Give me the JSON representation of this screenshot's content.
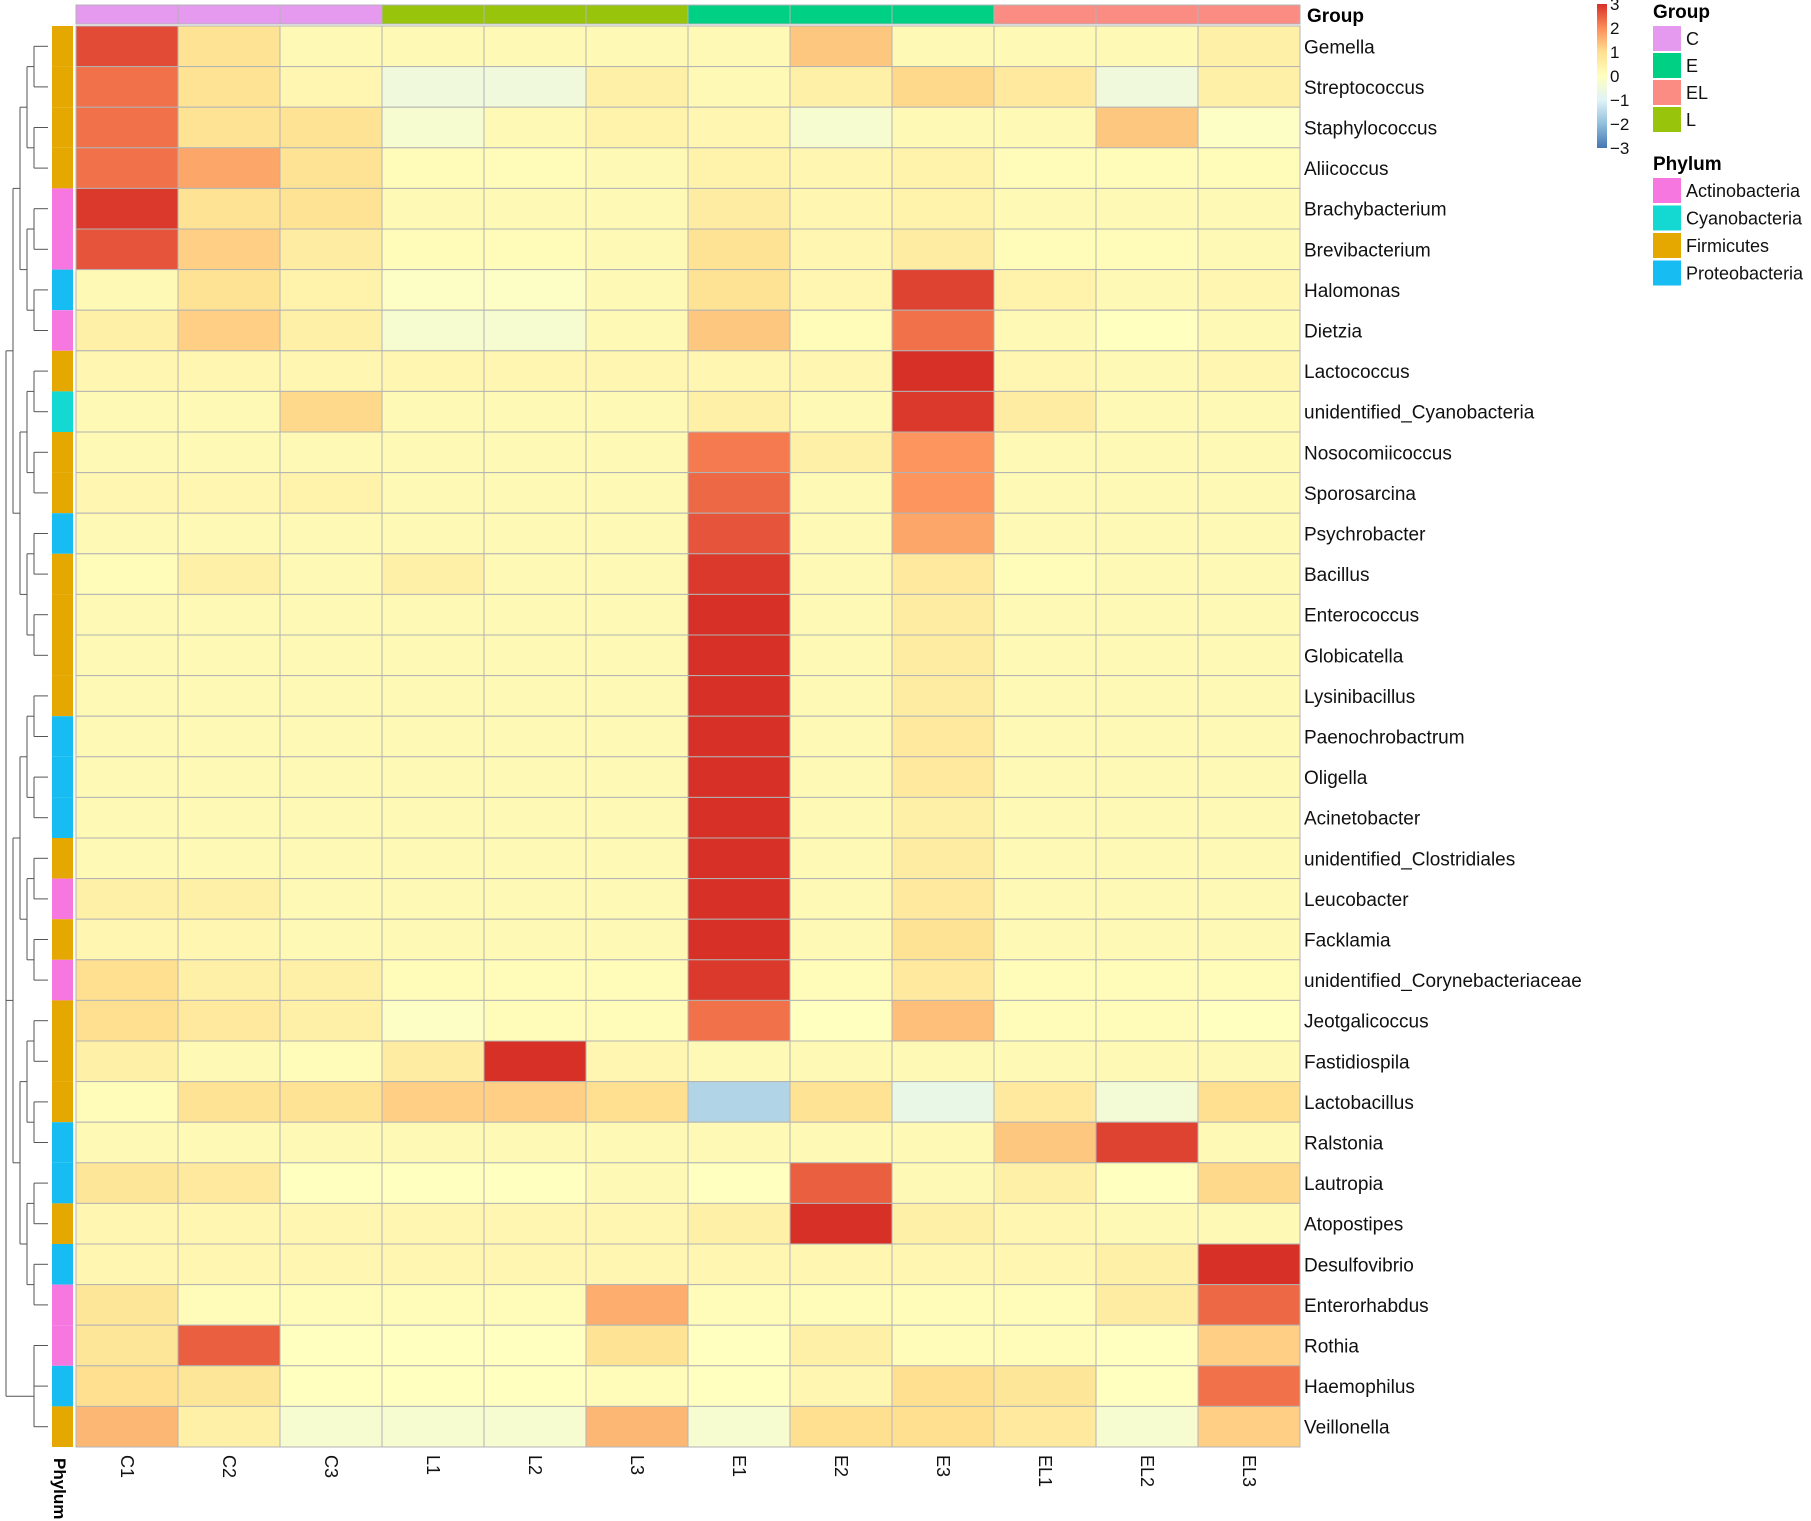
{
  "chart_data": {
    "type": "heatmap",
    "columns": [
      "C1",
      "C2",
      "C3",
      "L1",
      "L2",
      "L3",
      "E1",
      "E2",
      "E3",
      "EL1",
      "EL2",
      "EL3"
    ],
    "column_groups": [
      "C",
      "C",
      "C",
      "L",
      "L",
      "L",
      "E",
      "E",
      "E",
      "EL",
      "EL",
      "EL"
    ],
    "rows": [
      {
        "name": "Gemella",
        "phylum": "Firmicutes",
        "values": [
          2.7,
          0.9,
          0.2,
          0.2,
          0.2,
          0.2,
          0.2,
          1.3,
          0.2,
          0.2,
          0.2,
          0.5
        ]
      },
      {
        "name": "Streptococcus",
        "phylum": "Firmicutes",
        "values": [
          2.3,
          0.9,
          0.3,
          -0.5,
          -0.5,
          0.5,
          0.2,
          0.5,
          1.1,
          0.7,
          -0.5,
          0.5
        ]
      },
      {
        "name": "Staphylococcus",
        "phylum": "Firmicutes",
        "values": [
          2.3,
          0.9,
          0.9,
          -0.3,
          0.2,
          0.4,
          0.3,
          -0.3,
          0.2,
          0.2,
          1.3,
          -0.1
        ]
      },
      {
        "name": "Aliicoccus",
        "phylum": "Firmicutes",
        "values": [
          2.3,
          1.7,
          0.9,
          0.1,
          0.1,
          0.2,
          0.4,
          0.3,
          0.4,
          0.1,
          0.1,
          0.1
        ]
      },
      {
        "name": "Brachybacterium",
        "phylum": "Actinobacteria",
        "values": [
          2.9,
          0.9,
          0.9,
          0.2,
          0.2,
          0.2,
          0.6,
          0.3,
          0.4,
          0.2,
          0.2,
          0.2
        ]
      },
      {
        "name": "Brevibacterium",
        "phylum": "Actinobacteria",
        "values": [
          2.6,
          1.2,
          0.6,
          0.1,
          0.1,
          0.2,
          0.9,
          0.3,
          0.6,
          0.1,
          0.1,
          0.2
        ]
      },
      {
        "name": "Halomonas",
        "phylum": "Proteobacteria",
        "values": [
          0.2,
          0.9,
          0.4,
          -0.1,
          -0.1,
          0.2,
          0.9,
          0.3,
          2.8,
          0.4,
          0.2,
          0.3
        ]
      },
      {
        "name": "Dietzia",
        "phylum": "Actinobacteria",
        "values": [
          0.5,
          1.2,
          0.5,
          -0.3,
          -0.3,
          0.2,
          1.3,
          0.1,
          2.3,
          0.2,
          0.0,
          0.2
        ]
      },
      {
        "name": "Lactococcus",
        "phylum": "Firmicutes",
        "values": [
          0.3,
          0.3,
          0.3,
          0.3,
          0.3,
          0.3,
          0.3,
          0.3,
          3.1,
          0.3,
          0.2,
          0.3
        ]
      },
      {
        "name": "unidentified_Cyanobacteria",
        "phylum": "Cyanobacteria",
        "values": [
          0.2,
          0.2,
          1.1,
          0.2,
          0.2,
          0.2,
          0.5,
          0.2,
          2.9,
          0.6,
          0.2,
          0.2
        ]
      },
      {
        "name": "Nosocomiicoccus",
        "phylum": "Firmicutes",
        "values": [
          0.2,
          0.2,
          0.2,
          0.2,
          0.2,
          0.2,
          2.2,
          0.5,
          1.9,
          0.2,
          0.2,
          0.2
        ]
      },
      {
        "name": "Sporosarcina",
        "phylum": "Firmicutes",
        "values": [
          0.3,
          0.3,
          0.4,
          0.2,
          0.2,
          0.2,
          2.4,
          0.2,
          1.9,
          0.2,
          0.2,
          0.2
        ]
      },
      {
        "name": "Psychrobacter",
        "phylum": "Proteobacteria",
        "values": [
          0.2,
          0.2,
          0.2,
          0.2,
          0.2,
          0.2,
          2.6,
          0.2,
          1.7,
          0.2,
          0.2,
          0.2
        ]
      },
      {
        "name": "Bacillus",
        "phylum": "Firmicutes",
        "values": [
          0.1,
          0.5,
          0.2,
          0.5,
          0.2,
          0.2,
          2.9,
          0.2,
          0.7,
          0.1,
          0.2,
          0.2
        ]
      },
      {
        "name": "Enterococcus",
        "phylum": "Firmicutes",
        "values": [
          0.2,
          0.2,
          0.2,
          0.2,
          0.2,
          0.2,
          3.1,
          0.2,
          0.6,
          0.2,
          0.2,
          0.2
        ]
      },
      {
        "name": "Globicatella",
        "phylum": "Firmicutes",
        "values": [
          0.2,
          0.2,
          0.2,
          0.2,
          0.2,
          0.2,
          3.1,
          0.2,
          0.6,
          0.2,
          0.2,
          0.2
        ]
      },
      {
        "name": "Lysinibacillus",
        "phylum": "Firmicutes",
        "values": [
          0.2,
          0.2,
          0.2,
          0.2,
          0.2,
          0.2,
          3.1,
          0.2,
          0.6,
          0.2,
          0.2,
          0.2
        ]
      },
      {
        "name": "Paenochrobactrum",
        "phylum": "Proteobacteria",
        "values": [
          0.2,
          0.2,
          0.2,
          0.2,
          0.2,
          0.2,
          3.1,
          0.2,
          0.7,
          0.2,
          0.2,
          0.2
        ]
      },
      {
        "name": "Oligella",
        "phylum": "Proteobacteria",
        "values": [
          0.2,
          0.2,
          0.2,
          0.2,
          0.2,
          0.2,
          3.1,
          0.2,
          0.7,
          0.2,
          0.2,
          0.2
        ]
      },
      {
        "name": "Acinetobacter",
        "phylum": "Proteobacteria",
        "values": [
          0.2,
          0.2,
          0.2,
          0.2,
          0.2,
          0.2,
          3.1,
          0.2,
          0.5,
          0.2,
          0.2,
          0.2
        ]
      },
      {
        "name": "unidentified_Clostridiales",
        "phylum": "Firmicutes",
        "values": [
          0.2,
          0.2,
          0.2,
          0.2,
          0.2,
          0.2,
          3.1,
          0.2,
          0.6,
          0.2,
          0.2,
          0.2
        ]
      },
      {
        "name": "Leucobacter",
        "phylum": "Actinobacteria",
        "values": [
          0.5,
          0.5,
          0.2,
          0.2,
          0.2,
          0.2,
          3.0,
          0.2,
          0.7,
          0.2,
          0.2,
          0.2
        ]
      },
      {
        "name": "Facklamia",
        "phylum": "Firmicutes",
        "values": [
          0.3,
          0.3,
          0.2,
          0.2,
          0.2,
          0.2,
          3.0,
          0.2,
          0.9,
          0.2,
          0.2,
          0.2
        ]
      },
      {
        "name": "unidentified_Corynebacteriaceae",
        "phylum": "Actinobacteria",
        "values": [
          1.0,
          0.5,
          0.5,
          0.1,
          0.1,
          0.1,
          2.9,
          0.1,
          0.7,
          0.1,
          0.1,
          0.1
        ]
      },
      {
        "name": "Jeotgalicoccus",
        "phylum": "Firmicutes",
        "values": [
          1.0,
          0.7,
          0.5,
          -0.1,
          0.1,
          0.1,
          2.3,
          0.0,
          1.4,
          0.1,
          0.1,
          0.0
        ]
      },
      {
        "name": "Fastidiospila",
        "phylum": "Firmicutes",
        "values": [
          0.5,
          0.2,
          0.1,
          0.6,
          3.0,
          0.3,
          0.2,
          0.2,
          0.2,
          0.2,
          0.2,
          0.2
        ]
      },
      {
        "name": "Lactobacillus",
        "phylum": "Firmicutes",
        "values": [
          0.1,
          0.9,
          0.9,
          1.2,
          1.2,
          1.0,
          -1.6,
          0.9,
          -0.7,
          0.7,
          -0.4,
          1.0
        ]
      },
      {
        "name": "Ralstonia",
        "phylum": "Proteobacteria",
        "values": [
          0.2,
          0.2,
          0.2,
          0.2,
          0.2,
          0.2,
          0.2,
          0.2,
          0.2,
          1.3,
          2.8,
          0.2
        ]
      },
      {
        "name": "Lautropia",
        "phylum": "Proteobacteria",
        "values": [
          0.8,
          0.7,
          0.0,
          0.0,
          0.0,
          0.2,
          0.0,
          2.5,
          0.2,
          0.5,
          0.0,
          1.1
        ]
      },
      {
        "name": "Atopostipes",
        "phylum": "Firmicutes",
        "values": [
          0.3,
          0.3,
          0.3,
          0.3,
          0.3,
          0.3,
          0.5,
          3.0,
          0.5,
          0.3,
          0.2,
          0.2
        ]
      },
      {
        "name": "Desulfovibrio",
        "phylum": "Proteobacteria",
        "values": [
          0.3,
          0.3,
          0.3,
          0.3,
          0.3,
          0.3,
          0.3,
          0.3,
          0.3,
          0.3,
          0.5,
          3.1
        ]
      },
      {
        "name": "Enterorhabdus",
        "phylum": "Actinobacteria",
        "values": [
          0.8,
          0.1,
          0.1,
          0.1,
          0.1,
          1.6,
          0.1,
          0.1,
          0.1,
          0.1,
          0.6,
          2.4
        ]
      },
      {
        "name": "Rothia",
        "phylum": "Actinobacteria",
        "values": [
          0.8,
          2.5,
          0.0,
          0.0,
          0.0,
          0.9,
          0.0,
          0.5,
          0.1,
          0.1,
          0.0,
          1.2
        ]
      },
      {
        "name": "Haemophilus",
        "phylum": "Proteobacteria",
        "values": [
          1.0,
          0.8,
          0.0,
          0.0,
          0.0,
          0.1,
          0.0,
          0.3,
          1.0,
          0.8,
          0.0,
          2.3
        ]
      },
      {
        "name": "Veillonella",
        "phylum": "Firmicutes",
        "values": [
          1.5,
          0.5,
          -0.3,
          -0.3,
          -0.3,
          1.5,
          -0.3,
          1.0,
          1.0,
          0.7,
          -0.3,
          1.2
        ]
      }
    ],
    "scale": {
      "min": -3,
      "max": 3,
      "ticks": [
        3,
        2,
        1,
        0,
        -1,
        -2,
        -3
      ],
      "colors": [
        "#4575b4",
        "#91bfdb",
        "#e0f3f8",
        "#ffffbf",
        "#fee090",
        "#fc8d59",
        "#d73027"
      ]
    },
    "legend_group": {
      "title": "Group",
      "items": [
        {
          "label": "C",
          "color": "#e59af0"
        },
        {
          "label": "E",
          "color": "#00d084"
        },
        {
          "label": "EL",
          "color": "#fa8c84"
        },
        {
          "label": "L",
          "color": "#99c40c"
        }
      ]
    },
    "legend_phylum": {
      "title": "Phylum",
      "items": [
        {
          "label": "Actinobacteria",
          "color": "#f777e0"
        },
        {
          "label": "Cyanobacteria",
          "color": "#14d9d2"
        },
        {
          "label": "Firmicutes",
          "color": "#e4a800"
        },
        {
          "label": "Proteobacteria",
          "color": "#17bdf2"
        }
      ]
    },
    "group_annotation_label": "Group",
    "phylum_annotation_label": "Phylum",
    "legend_position": "right"
  }
}
